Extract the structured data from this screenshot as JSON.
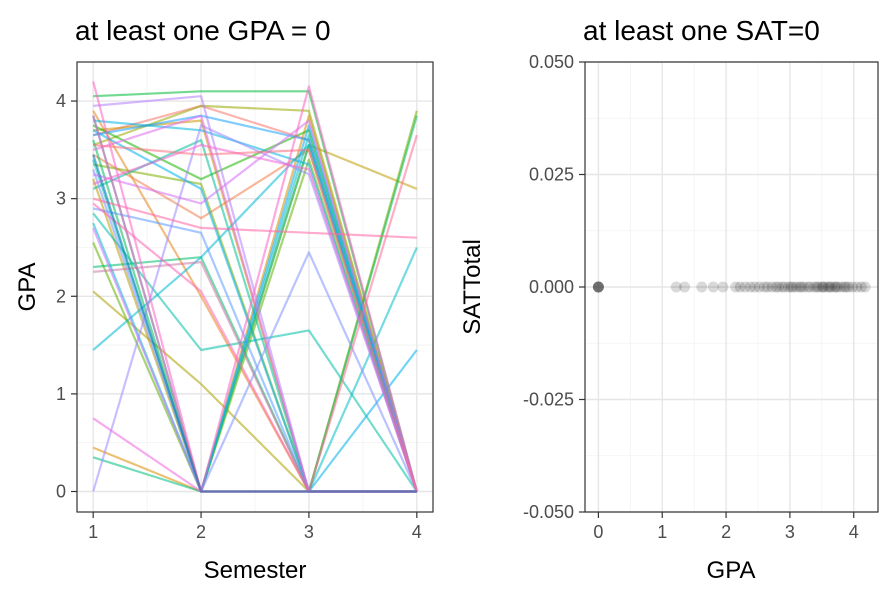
{
  "chart_data": [
    {
      "type": "line",
      "title": "at least one GPA = 0",
      "xlabel": "Semester",
      "ylabel": "GPA",
      "xlim": [
        0.85,
        4.15
      ],
      "ylim": [
        -0.21,
        4.4
      ],
      "x_ticks": [
        "1",
        "2",
        "3",
        "4"
      ],
      "y_ticks": [
        "0",
        "1",
        "2",
        "3",
        "4"
      ],
      "grid": true,
      "legend": "none",
      "x": [
        1,
        2,
        3,
        4
      ],
      "series": [
        {
          "values": [
            3.65,
            3.95,
            3.6,
            0.0
          ],
          "color": "#F8766D"
        },
        {
          "values": [
            3.45,
            2.8,
            3.5,
            0.0
          ],
          "color": "#F17E4B"
        },
        {
          "values": [
            3.9,
            2.0,
            0.0,
            0.0
          ],
          "color": "#E7861B"
        },
        {
          "values": [
            0.45,
            0.0,
            3.85,
            0.0
          ],
          "color": "#DB8E00"
        },
        {
          "values": [
            3.7,
            3.8,
            0.0,
            0.0
          ],
          "color": "#CD9600"
        },
        {
          "values": [
            3.2,
            0.0,
            3.55,
            3.1
          ],
          "color": "#BD9D00"
        },
        {
          "values": [
            2.05,
            1.1,
            0.0,
            0.0
          ],
          "color": "#ABA300"
        },
        {
          "values": [
            3.55,
            3.95,
            3.9,
            0.0
          ],
          "color": "#97A900"
        },
        {
          "values": [
            3.35,
            3.15,
            0.0,
            3.9
          ],
          "color": "#7FAE00"
        },
        {
          "values": [
            2.55,
            0.0,
            3.4,
            0.0
          ],
          "color": "#5EB300"
        },
        {
          "values": [
            3.75,
            3.2,
            3.7,
            0.0
          ],
          "color": "#1AB700"
        },
        {
          "values": [
            4.05,
            4.1,
            4.1,
            0.0
          ],
          "color": "#00BA38"
        },
        {
          "values": [
            3.6,
            0.0,
            0.0,
            3.85
          ],
          "color": "#00BC56"
        },
        {
          "values": [
            2.3,
            2.4,
            0.0,
            0.0
          ],
          "color": "#00BF6D"
        },
        {
          "values": [
            0.35,
            0.0,
            3.55,
            0.0
          ],
          "color": "#00C082"
        },
        {
          "values": [
            3.1,
            3.6,
            0.0,
            0.0
          ],
          "color": "#00C095"
        },
        {
          "values": [
            2.85,
            1.45,
            1.65,
            0.0
          ],
          "color": "#00C0A7"
        },
        {
          "values": [
            3.4,
            0.0,
            3.65,
            0.0
          ],
          "color": "#00BFB8"
        },
        {
          "values": [
            2.75,
            0.0,
            0.0,
            2.5
          ],
          "color": "#00BDC8"
        },
        {
          "values": [
            1.45,
            2.4,
            3.55,
            0.0
          ],
          "color": "#00BAD6"
        },
        {
          "values": [
            3.8,
            3.7,
            3.35,
            0.0
          ],
          "color": "#00B6E3"
        },
        {
          "values": [
            3.7,
            3.1,
            0.0,
            1.45
          ],
          "color": "#00B1EE"
        },
        {
          "values": [
            3.85,
            0.0,
            3.75,
            0.0
          ],
          "color": "#00ABF8"
        },
        {
          "values": [
            3.65,
            3.85,
            3.6,
            0.0
          ],
          "color": "#1CA3FF"
        },
        {
          "values": [
            2.9,
            2.65,
            0.0,
            0.0
          ],
          "color": "#5B9BFF"
        },
        {
          "values": [
            3.3,
            0.0,
            2.45,
            0.0
          ],
          "color": "#7F92FF"
        },
        {
          "values": [
            0.0,
            3.75,
            3.25,
            0.0
          ],
          "color": "#9C89FF"
        },
        {
          "values": [
            3.95,
            4.05,
            0.0,
            0.0
          ],
          "color": "#B380FF"
        },
        {
          "values": [
            2.7,
            0.0,
            0.0,
            0.0
          ],
          "color": "#C678FF"
        },
        {
          "values": [
            3.25,
            2.95,
            3.8,
            0.0
          ],
          "color": "#D670F8"
        },
        {
          "values": [
            3.5,
            3.85,
            0.0,
            0.0
          ],
          "color": "#E36AEE"
        },
        {
          "values": [
            0.75,
            0.0,
            0.0,
            0.0
          ],
          "color": "#EE65E2"
        },
        {
          "values": [
            3.15,
            3.55,
            3.3,
            0.0
          ],
          "color": "#F662D5"
        },
        {
          "values": [
            4.2,
            0.0,
            4.15,
            0.0
          ],
          "color": "#FC62C6"
        },
        {
          "values": [
            2.95,
            2.05,
            0.0,
            0.0
          ],
          "color": "#FF63B6"
        },
        {
          "values": [
            3.0,
            2.7,
            2.65,
            2.6
          ],
          "color": "#FF66A5"
        },
        {
          "values": [
            3.85,
            0.0,
            0.0,
            3.65
          ],
          "color": "#FF6A93"
        },
        {
          "values": [
            3.55,
            3.45,
            3.5,
            0.0
          ],
          "color": "#FD6F80"
        },
        {
          "values": [
            2.25,
            2.35,
            0.0,
            0.0
          ],
          "color": "#CC79A7"
        },
        {
          "values": [
            3.45,
            0.0,
            0.0,
            0.0
          ],
          "color": "#0072B2"
        }
      ]
    },
    {
      "type": "scatter",
      "title": "at least one SAT=0",
      "xlabel": "GPA",
      "ylabel": "SATTotal",
      "xlim": [
        -0.21,
        4.38
      ],
      "ylim": [
        -0.05,
        0.05
      ],
      "x_ticks": [
        "0",
        "1",
        "2",
        "3",
        "4"
      ],
      "y_ticks": [
        "-0.050",
        "-0.025",
        "0.000",
        "0.025",
        "0.050"
      ],
      "grid": true,
      "legend": "none",
      "point_color": "#000000",
      "point_alpha": 0.15,
      "x": [
        0,
        0,
        0,
        0,
        0,
        1.22,
        1.35,
        1.62,
        1.8,
        1.95,
        2.15,
        2.22,
        2.3,
        2.38,
        2.45,
        2.52,
        2.6,
        2.65,
        2.72,
        2.78,
        2.82,
        2.88,
        2.92,
        2.98,
        3.02,
        3.05,
        3.1,
        3.15,
        3.18,
        3.22,
        3.28,
        3.32,
        3.38,
        3.42,
        3.45,
        3.5,
        3.52,
        3.55,
        3.6,
        3.62,
        3.65,
        3.7,
        3.72,
        3.75,
        3.8,
        3.85,
        3.88,
        3.92,
        3.98,
        4.05,
        4.12,
        4.18
      ],
      "y": [
        0,
        0,
        0,
        0,
        0,
        0,
        0,
        0,
        0,
        0,
        0,
        0,
        0,
        0,
        0,
        0,
        0,
        0,
        0,
        0,
        0,
        0,
        0,
        0,
        0,
        0,
        0,
        0,
        0,
        0,
        0,
        0,
        0,
        0,
        0,
        0,
        0,
        0,
        0,
        0,
        0,
        0,
        0,
        0,
        0,
        0,
        0,
        0,
        0,
        0,
        0,
        0
      ]
    }
  ]
}
